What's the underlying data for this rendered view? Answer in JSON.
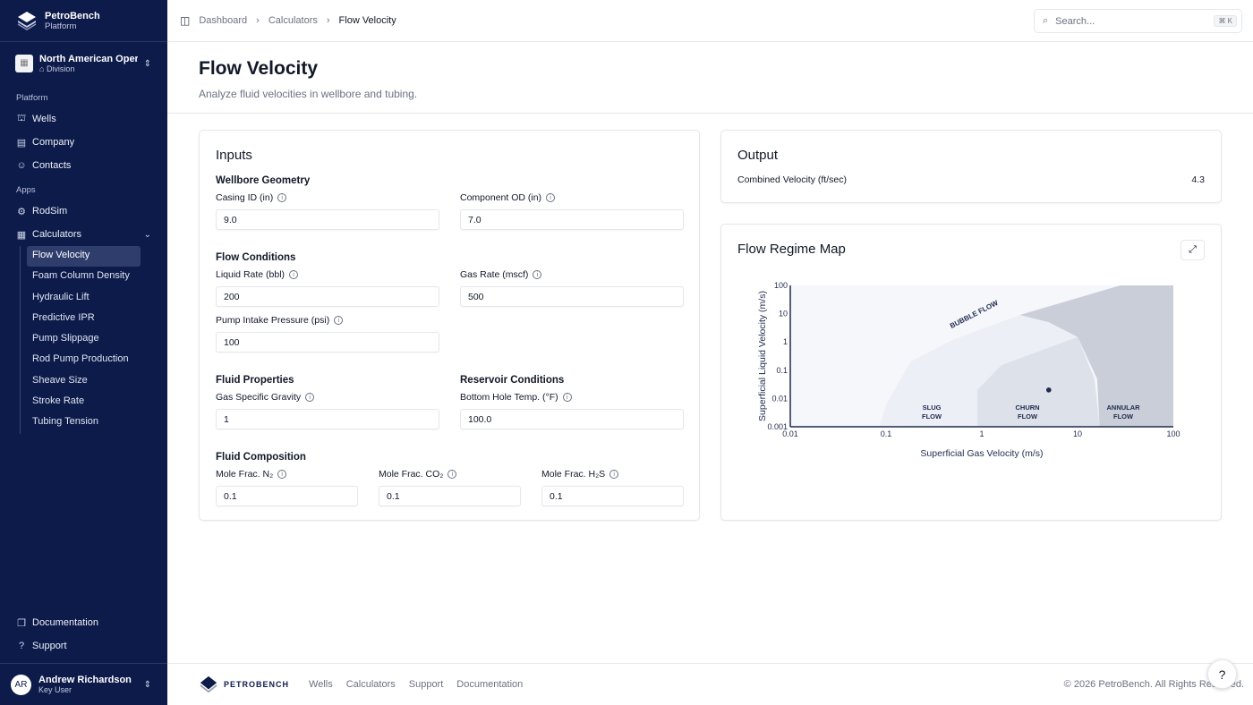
{
  "brand": {
    "name": "PetroBench",
    "sub": "Platform",
    "footer_logo": "PETROBENCH"
  },
  "org": {
    "name": "North American Operations",
    "type": "Division"
  },
  "sidebar": {
    "platform_label": "Platform",
    "platform": [
      {
        "label": "Wells",
        "icon": "wells-icon"
      },
      {
        "label": "Company",
        "icon": "building-icon"
      },
      {
        "label": "Contacts",
        "icon": "users-icon"
      }
    ],
    "apps_label": "Apps",
    "apps": [
      {
        "label": "RodSim",
        "icon": "rodsim-icon"
      },
      {
        "label": "Calculators",
        "icon": "calculator-icon"
      }
    ],
    "calculators": [
      "Flow Velocity",
      "Foam Column Density",
      "Hydraulic Lift",
      "Predictive IPR",
      "Pump Slippage",
      "Rod Pump Production",
      "Sheave Size",
      "Stroke Rate",
      "Tubing Tension"
    ],
    "bottom": [
      {
        "label": "Documentation"
      },
      {
        "label": "Support"
      }
    ]
  },
  "user": {
    "initials": "AR",
    "name": "Andrew Richardson",
    "role": "Key User"
  },
  "breadcrumb": [
    "Dashboard",
    "Calculators",
    "Flow Velocity"
  ],
  "search": {
    "placeholder": "Search...",
    "shortcut": "⌘ K"
  },
  "page": {
    "title": "Flow Velocity",
    "subtitle": "Analyze fluid velocities in wellbore and tubing."
  },
  "inputs": {
    "title": "Inputs",
    "wellbore": {
      "title": "Wellbore Geometry",
      "casing_label": "Casing ID (in)",
      "casing": "9.0",
      "od_label": "Component OD (in)",
      "od": "7.0"
    },
    "flow": {
      "title": "Flow Conditions",
      "liquid_label": "Liquid Rate (bbl)",
      "liquid": "200",
      "gas_label": "Gas Rate (mscf)",
      "gas": "500",
      "pip_label": "Pump Intake Pressure (psi)",
      "pip": "100"
    },
    "fluid": {
      "title": "Fluid Properties",
      "sg_label": "Gas Specific Gravity",
      "sg": "1"
    },
    "reservoir": {
      "title": "Reservoir Conditions",
      "bht_label": "Bottom Hole Temp. (°F)",
      "bht": "100.0"
    },
    "comp": {
      "title": "Fluid Composition",
      "n2_label": "Mole Frac. N₂",
      "n2": "0.1",
      "co2_label": "Mole Frac. CO₂",
      "co2": "0.1",
      "h2s_label": "Mole Frac. H₂S",
      "h2s": "0.1"
    }
  },
  "output": {
    "title": "Output",
    "label": "Combined Velocity (ft/sec)",
    "value": "4.3"
  },
  "map": {
    "title": "Flow Regime Map"
  },
  "chart_data": {
    "type": "scatter",
    "xlabel": "Superficial Gas Velocity (m/s)",
    "ylabel": "Superficial Liquid Velocity (m/s)",
    "xscale": "log",
    "yscale": "log",
    "xlim": [
      0.01,
      100
    ],
    "ylim": [
      0.001,
      100
    ],
    "xticks": [
      "0.01",
      "0.1",
      "1",
      "10",
      "100"
    ],
    "yticks": [
      "0.001",
      "0.01",
      "0.1",
      "1",
      "10",
      "100"
    ],
    "point": {
      "x": 5,
      "y": 0.02
    },
    "regions": [
      {
        "name": "BUBBLE FLOW",
        "color": "#f5f7fb"
      },
      {
        "name": "SLUG FLOW",
        "color": "#eceff6",
        "polygon": [
          [
            0.085,
            0.001
          ],
          [
            0.1,
            0.006
          ],
          [
            0.18,
            0.2
          ],
          [
            0.5,
            1.2
          ],
          [
            2.5,
            9
          ],
          [
            5,
            5
          ],
          [
            10,
            1.5
          ],
          [
            15,
            0.05
          ],
          [
            17,
            0.001
          ]
        ]
      },
      {
        "name": "CHURN FLOW",
        "color": "#dde1e9",
        "polygon": [
          [
            0.9,
            0.001
          ],
          [
            0.9,
            0.02
          ],
          [
            1.6,
            0.15
          ],
          [
            10,
            1.5
          ],
          [
            15,
            0.05
          ],
          [
            17,
            0.001
          ]
        ]
      },
      {
        "name": "ANNULAR FLOW",
        "color": "#c9ced8",
        "polygon": [
          [
            17,
            0.001
          ],
          [
            16,
            0.05
          ],
          [
            10,
            1.5
          ],
          [
            5,
            5
          ],
          [
            2.5,
            9
          ],
          [
            28,
            100
          ],
          [
            100,
            100
          ],
          [
            100,
            0.001
          ]
        ]
      }
    ]
  },
  "footer": {
    "links": [
      "Wells",
      "Calculators",
      "Support",
      "Documentation"
    ],
    "copyright": "© 2026 PetroBench. All Rights Reserved."
  }
}
